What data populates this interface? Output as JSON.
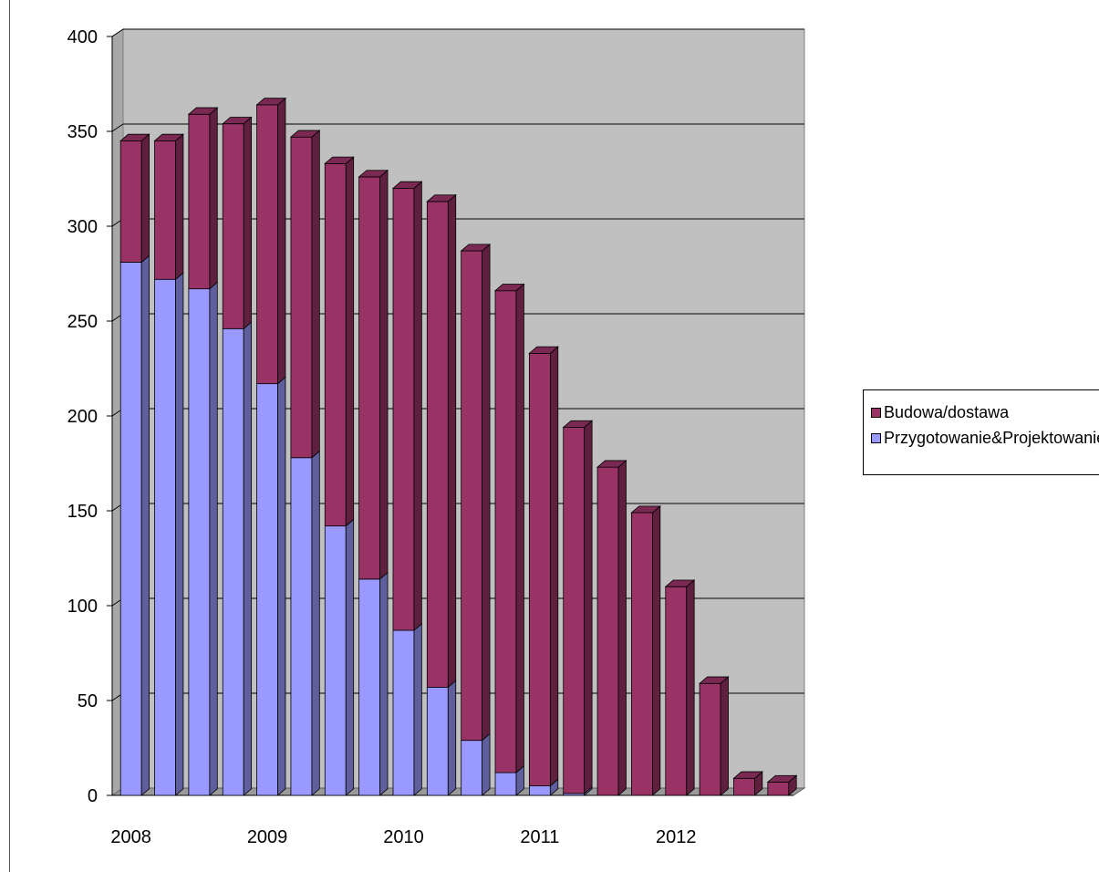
{
  "chart_data": {
    "type": "bar",
    "stacked": true,
    "three_d": true,
    "title": "",
    "xlabel": "",
    "ylabel": "",
    "ylim": [
      0,
      400
    ],
    "yticks": [
      0,
      50,
      100,
      150,
      200,
      250,
      300,
      350,
      400
    ],
    "ytick_labels": [
      "0",
      "50",
      "100",
      "150",
      "200",
      "250",
      "300",
      "350",
      "400"
    ],
    "xtick_labels": [
      "2008",
      "2009",
      "2010",
      "2011",
      "2012"
    ],
    "grid": true,
    "legend_position": "right",
    "num_bars": 20,
    "series": [
      {
        "name": "Przygotowanie&Projektowanie",
        "color": "#9999ff",
        "values": [
          281,
          272,
          267,
          246,
          217,
          178,
          142,
          114,
          87,
          57,
          29,
          12,
          5,
          1,
          0,
          0,
          0,
          0,
          0,
          0
        ]
      },
      {
        "name": "Budowa/dostawa",
        "color": "#993366",
        "values": [
          64,
          73,
          92,
          108,
          147,
          169,
          191,
          212,
          233,
          256,
          258,
          254,
          228,
          193,
          173,
          149,
          110,
          59,
          9,
          7
        ]
      }
    ]
  }
}
